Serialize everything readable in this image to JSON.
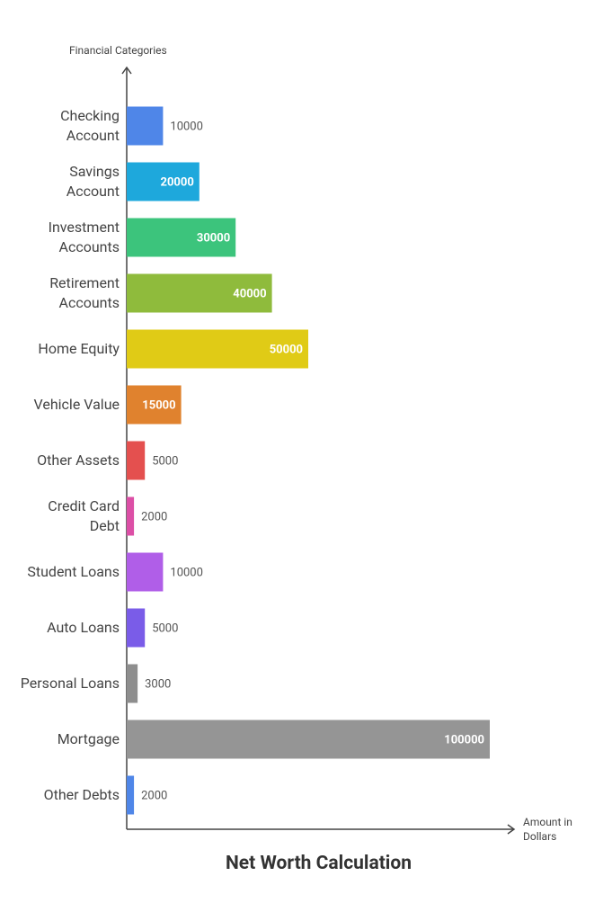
{
  "chart_data": {
    "type": "hbar",
    "title": "Net Worth Calculation",
    "x_label": "Amount in Dollars",
    "y_label": "Financial Categories",
    "categories": [
      "Checking Account",
      "Savings Account",
      "Investment Accounts",
      "Retirement Accounts",
      "Home Equity",
      "Vehicle Value",
      "Other Assets",
      "Credit Card Debt",
      "Student Loans",
      "Auto Loans",
      "Personal Loans",
      "Mortgage",
      "Other Debts"
    ],
    "values": [
      10000,
      20000,
      30000,
      40000,
      50000,
      15000,
      5000,
      2000,
      10000,
      5000,
      3000,
      100000,
      2000
    ],
    "colors": [
      "#4f86e8",
      "#1ea8dc",
      "#3cc47c",
      "#8fbb3c",
      "#e0cb16",
      "#e0822e",
      "#e4504f",
      "#dc4fa6",
      "#b05ee8",
      "#7a5ce8",
      "#8e8e8e",
      "#959595",
      "#4f86e8"
    ],
    "xlim": [
      0,
      100000
    ]
  }
}
